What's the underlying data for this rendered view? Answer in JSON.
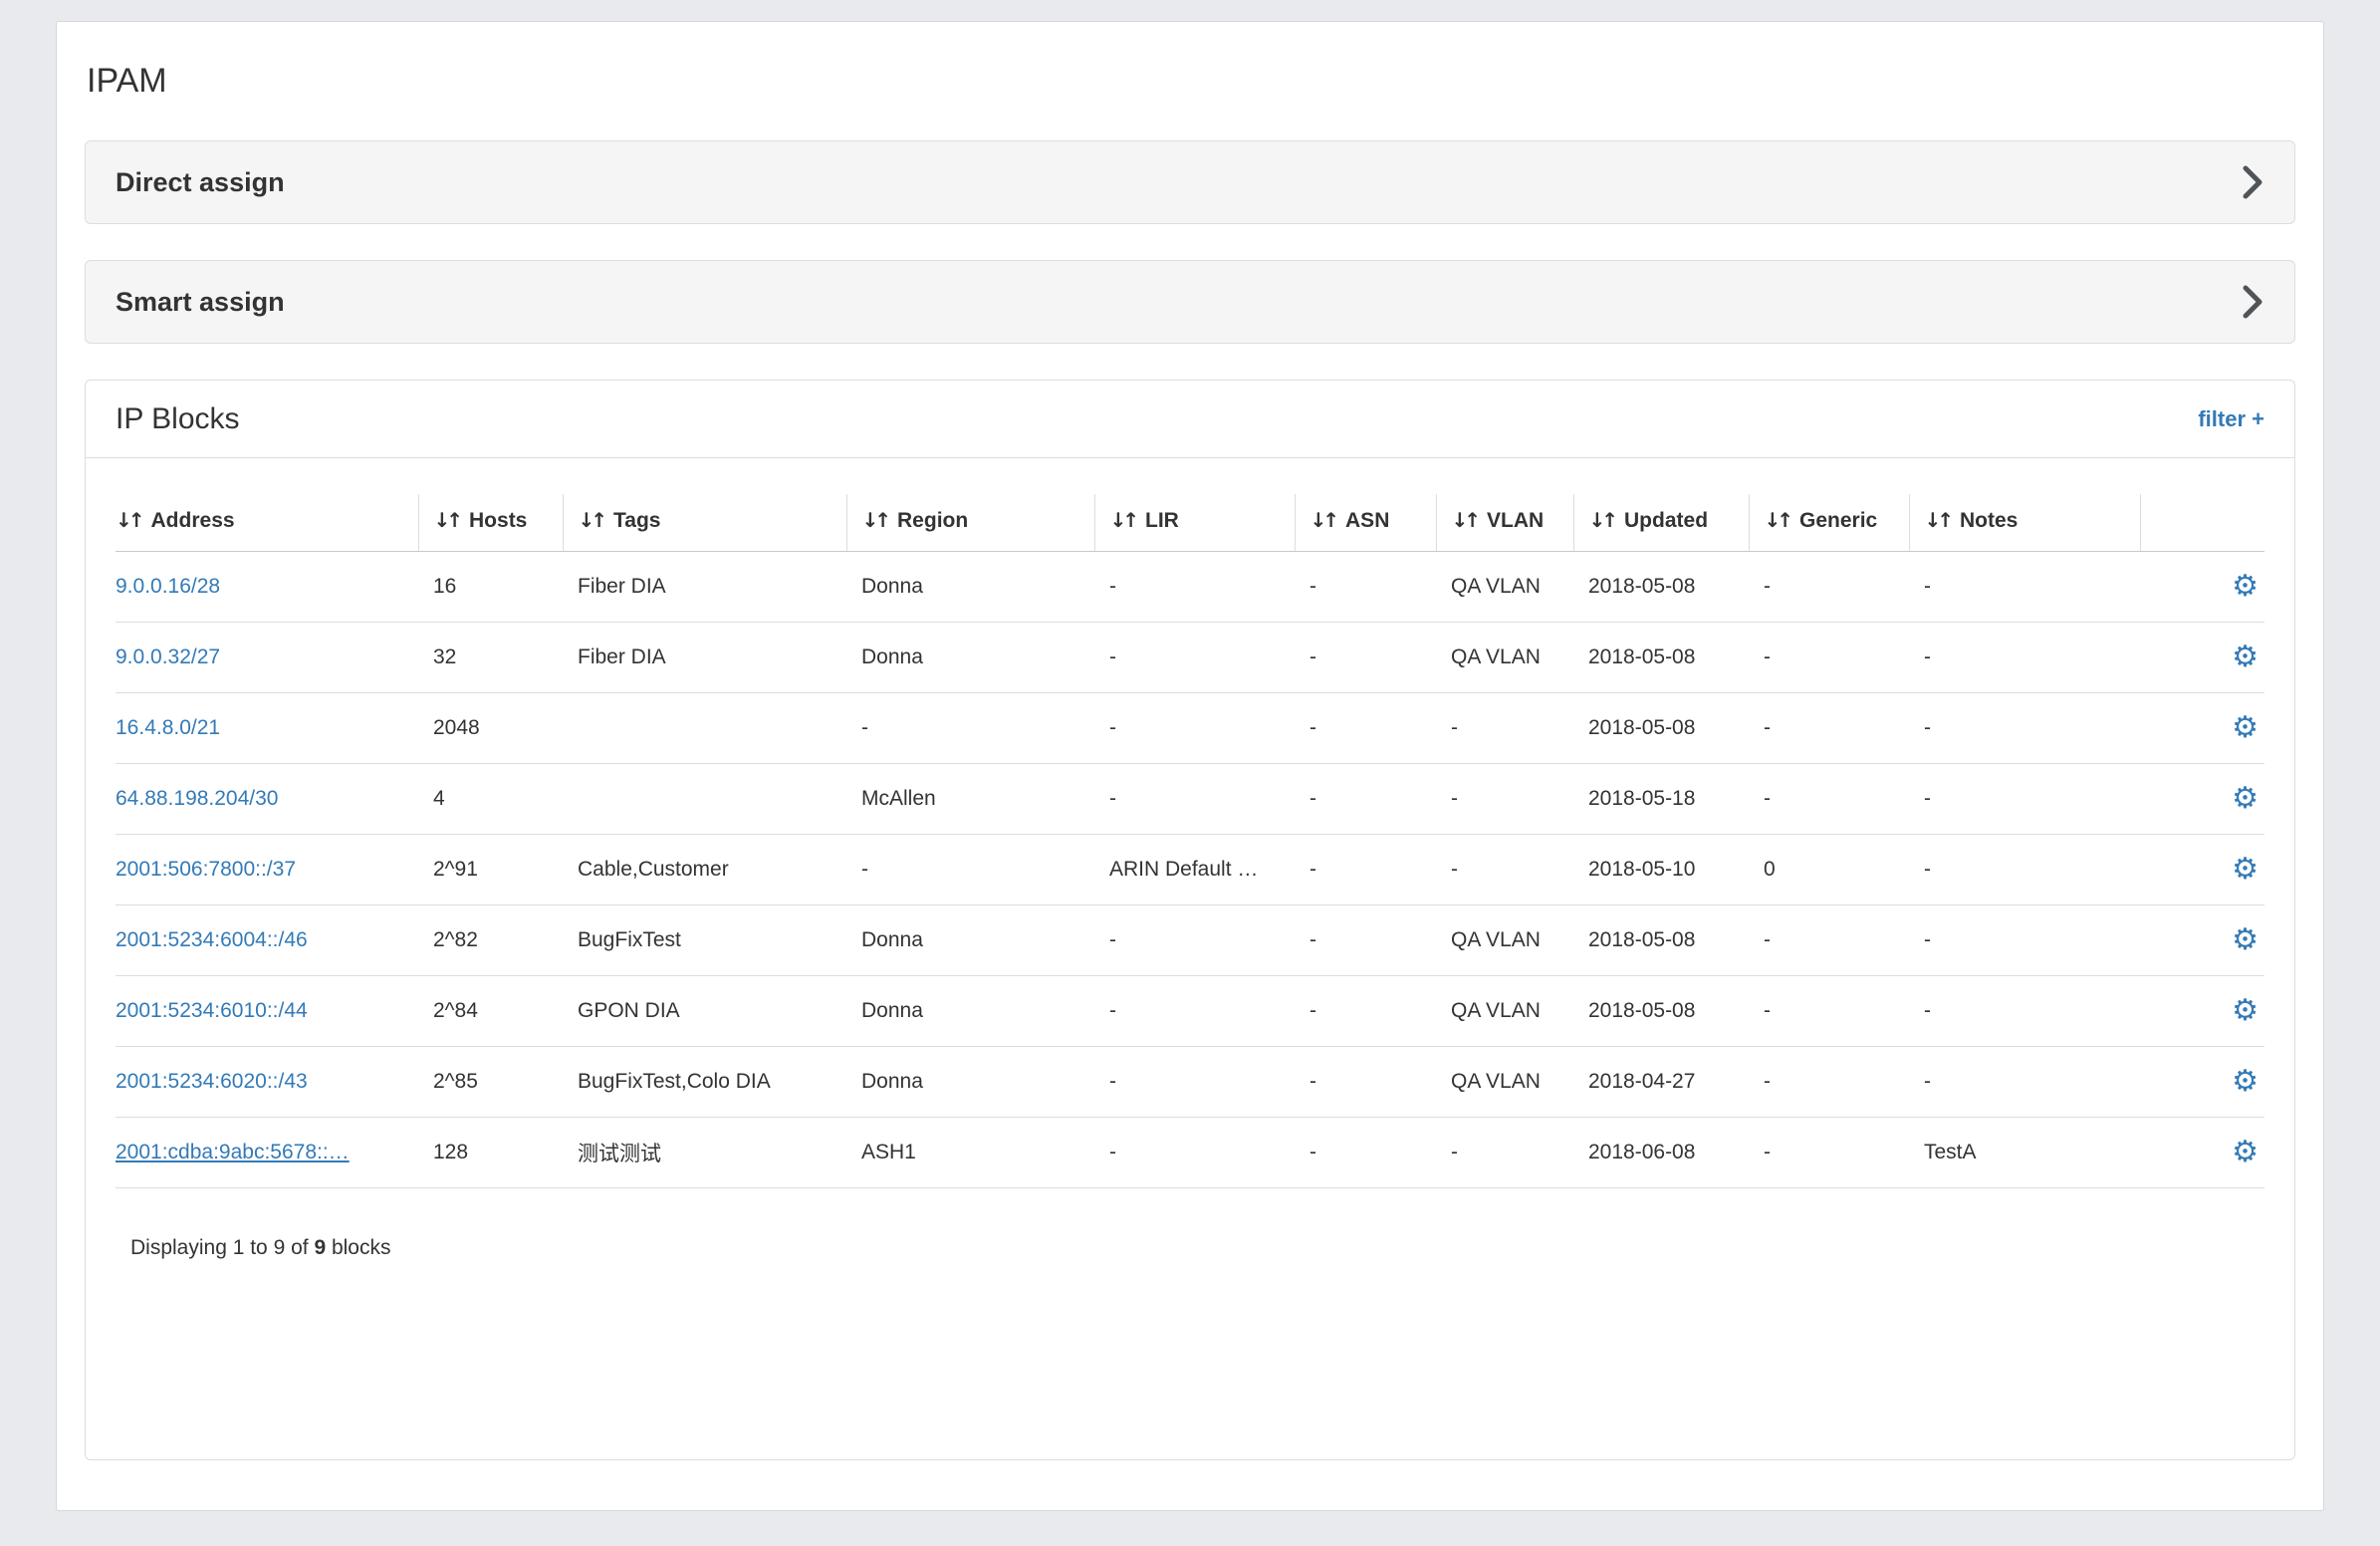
{
  "page": {
    "title": "IPAM"
  },
  "panels": [
    {
      "label": "Direct assign"
    },
    {
      "label": "Smart assign"
    }
  ],
  "icons": {
    "sort": "↓↑",
    "gear": "⚙"
  },
  "ip_blocks": {
    "title": "IP Blocks",
    "filter_label": "filter +",
    "columns": [
      "Address",
      "Hosts",
      "Tags",
      "Region",
      "LIR",
      "ASN",
      "VLAN",
      "Updated",
      "Generic",
      "Notes"
    ],
    "rows": [
      {
        "address": "9.0.0.16/28",
        "hosts": "16",
        "tags": "Fiber DIA",
        "region": "Donna",
        "lir": "-",
        "asn": "-",
        "vlan": "QA VLAN",
        "updated": "2018-05-08",
        "generic": "-",
        "notes": "-"
      },
      {
        "address": "9.0.0.32/27",
        "hosts": "32",
        "tags": "Fiber DIA",
        "region": "Donna",
        "lir": "-",
        "asn": "-",
        "vlan": "QA VLAN",
        "updated": "2018-05-08",
        "generic": "-",
        "notes": "-"
      },
      {
        "address": "16.4.8.0/21",
        "hosts": "2048",
        "tags": "",
        "region": "-",
        "lir": "-",
        "asn": "-",
        "vlan": "-",
        "updated": "2018-05-08",
        "generic": "-",
        "notes": "-"
      },
      {
        "address": "64.88.198.204/30",
        "hosts": "4",
        "tags": "",
        "region": "McAllen",
        "lir": "-",
        "asn": "-",
        "vlan": "-",
        "updated": "2018-05-18",
        "generic": "-",
        "notes": "-"
      },
      {
        "address": "2001:506:7800::/37",
        "hosts": "2^91",
        "tags": "Cable,Customer",
        "region": "-",
        "lir": "ARIN Default …",
        "asn": "-",
        "vlan": "-",
        "updated": "2018-05-10",
        "generic": "0",
        "notes": "-"
      },
      {
        "address": "2001:5234:6004::/46",
        "hosts": "2^82",
        "tags": "BugFixTest",
        "region": "Donna",
        "lir": "-",
        "asn": "-",
        "vlan": "QA VLAN",
        "updated": "2018-05-08",
        "generic": "-",
        "notes": "-"
      },
      {
        "address": "2001:5234:6010::/44",
        "hosts": "2^84",
        "tags": "GPON DIA",
        "region": "Donna",
        "lir": "-",
        "asn": "-",
        "vlan": "QA VLAN",
        "updated": "2018-05-08",
        "generic": "-",
        "notes": "-"
      },
      {
        "address": "2001:5234:6020::/43",
        "hosts": "2^85",
        "tags": "BugFixTest,Colo DIA",
        "region": "Donna",
        "lir": "-",
        "asn": "-",
        "vlan": "QA VLAN",
        "updated": "2018-04-27",
        "generic": "-",
        "notes": "-"
      },
      {
        "address": "2001:cdba:9abc:5678::…",
        "hosts": "128",
        "tags": "测试测试",
        "region": "ASH1",
        "lir": "-",
        "asn": "-",
        "vlan": "-",
        "updated": "2018-06-08",
        "generic": "-",
        "notes": "TestA"
      }
    ],
    "footer": {
      "prefix": "Displaying 1 to 9 of ",
      "count": "9",
      "suffix": " blocks"
    }
  }
}
